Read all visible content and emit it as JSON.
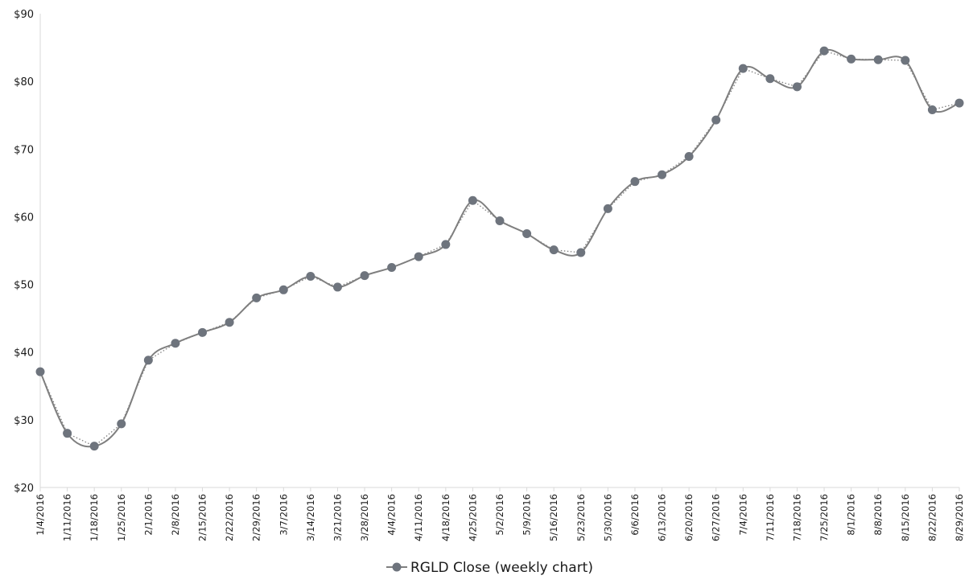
{
  "chart_data": {
    "type": "line",
    "title": "",
    "xlabel": "",
    "ylabel": "",
    "categories": [
      "1/4/2016",
      "1/11/2016",
      "1/18/2016",
      "1/25/2016",
      "2/1/2016",
      "2/8/2016",
      "2/15/2016",
      "2/22/2016",
      "2/29/2016",
      "3/7/2016",
      "3/14/2016",
      "3/21/2016",
      "3/28/2016",
      "4/4/2016",
      "4/11/2016",
      "4/18/2016",
      "4/25/2016",
      "5/2/2016",
      "5/9/2016",
      "5/16/2016",
      "5/23/2016",
      "5/30/2016",
      "6/6/2016",
      "6/13/2016",
      "6/20/2016",
      "6/27/2016",
      "7/4/2016",
      "7/11/2016",
      "7/18/2016",
      "7/25/2016",
      "8/1/2016",
      "8/8/2016",
      "8/15/2016",
      "8/22/2016",
      "8/29/2016"
    ],
    "series": [
      {
        "name": "RGLD Close (weekly chart)",
        "color": "#7f7f7f",
        "marker_color": "#6e747d",
        "values": [
          37.1,
          28.0,
          26.1,
          29.4,
          38.8,
          41.3,
          42.9,
          44.4,
          48.0,
          49.2,
          51.2,
          49.6,
          51.3,
          52.5,
          54.1,
          55.9,
          62.4,
          59.4,
          57.5,
          55.1,
          54.7,
          61.2,
          65.2,
          66.2,
          68.9,
          74.3,
          81.9,
          80.4,
          79.2,
          84.5,
          83.3,
          83.2,
          83.1,
          75.8,
          76.8
        ]
      }
    ],
    "trendline": {
      "style": "dotted",
      "color": "#7f7f7f"
    },
    "ylim": [
      20,
      90
    ],
    "y_ticks": [
      20,
      30,
      40,
      50,
      60,
      70,
      80,
      90
    ],
    "y_tick_labels": [
      "$20",
      "$30",
      "$40",
      "$50",
      "$60",
      "$70",
      "$80",
      "$90"
    ],
    "grid": false,
    "legend_position": "bottom-center"
  }
}
